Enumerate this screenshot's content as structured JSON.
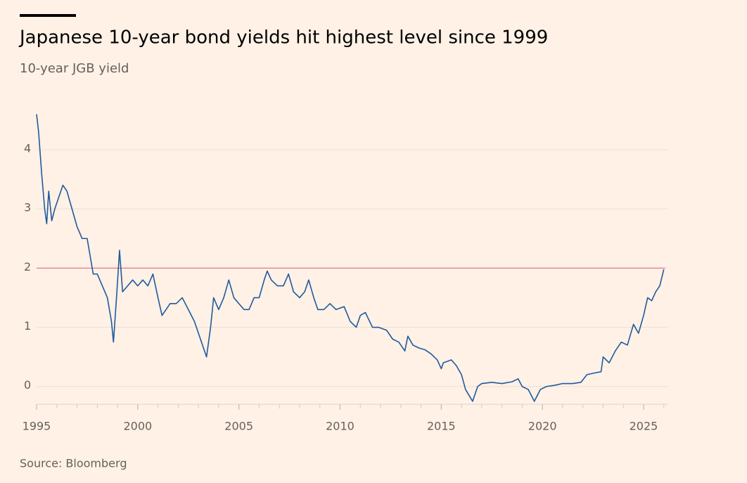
{
  "chart_data": {
    "type": "line",
    "title": "Japanese 10-year bond yields hit highest level since 1999",
    "subtitle": "10-year JGB yield",
    "source": "Source: Bloomberg",
    "color": "#1f5a9e",
    "x": [
      1995.0,
      1995.1,
      1995.25,
      1995.4,
      1995.5,
      1995.6,
      1995.75,
      1995.9,
      1996.1,
      1996.3,
      1996.5,
      1996.75,
      1997.0,
      1997.25,
      1997.5,
      1997.6,
      1997.8,
      1998.0,
      1998.25,
      1998.5,
      1998.7,
      1998.8,
      1998.95,
      1999.1,
      1999.25,
      1999.5,
      1999.75,
      2000.0,
      2000.25,
      2000.5,
      2000.75,
      2001.0,
      2001.2,
      2001.4,
      2001.6,
      2001.9,
      2002.2,
      2002.5,
      2002.8,
      2003.1,
      2003.4,
      2003.6,
      2003.75,
      2004.0,
      2004.25,
      2004.5,
      2004.75,
      2005.0,
      2005.25,
      2005.5,
      2005.75,
      2006.0,
      2006.25,
      2006.4,
      2006.6,
      2006.9,
      2007.2,
      2007.45,
      2007.7,
      2008.0,
      2008.25,
      2008.45,
      2008.7,
      2008.9,
      2009.2,
      2009.5,
      2009.8,
      2010.2,
      2010.5,
      2010.8,
      2011.0,
      2011.25,
      2011.6,
      2011.9,
      2012.3,
      2012.6,
      2012.9,
      2013.2,
      2013.35,
      2013.6,
      2013.9,
      2014.2,
      2014.5,
      2014.8,
      2015.0,
      2015.1,
      2015.5,
      2015.75,
      2016.0,
      2016.2,
      2016.55,
      2016.8,
      2017.0,
      2017.5,
      2018.0,
      2018.5,
      2018.8,
      2019.0,
      2019.3,
      2019.6,
      2019.9,
      2020.2,
      2020.6,
      2021.0,
      2021.5,
      2021.9,
      2022.2,
      2022.6,
      2022.9,
      2023.0,
      2023.3,
      2023.6,
      2023.9,
      2024.2,
      2024.5,
      2024.75,
      2025.0,
      2025.2,
      2025.4,
      2025.6,
      2025.8,
      2026.0
    ],
    "values": [
      4.6,
      4.3,
      3.6,
      3.0,
      2.75,
      3.3,
      2.8,
      3.0,
      3.2,
      3.4,
      3.3,
      3.0,
      2.7,
      2.5,
      2.5,
      2.3,
      1.9,
      1.9,
      1.7,
      1.5,
      1.1,
      0.75,
      1.5,
      2.3,
      1.6,
      1.7,
      1.8,
      1.7,
      1.8,
      1.7,
      1.9,
      1.5,
      1.2,
      1.3,
      1.4,
      1.4,
      1.5,
      1.3,
      1.1,
      0.8,
      0.5,
      1.0,
      1.5,
      1.3,
      1.5,
      1.8,
      1.5,
      1.4,
      1.3,
      1.3,
      1.5,
      1.5,
      1.8,
      1.95,
      1.8,
      1.7,
      1.7,
      1.9,
      1.6,
      1.5,
      1.6,
      1.8,
      1.5,
      1.3,
      1.3,
      1.4,
      1.3,
      1.35,
      1.1,
      1.0,
      1.2,
      1.25,
      1.0,
      1.0,
      0.95,
      0.8,
      0.75,
      0.6,
      0.85,
      0.7,
      0.65,
      0.62,
      0.55,
      0.45,
      0.3,
      0.4,
      0.45,
      0.35,
      0.2,
      -0.05,
      -0.25,
      0.0,
      0.05,
      0.07,
      0.05,
      0.08,
      0.13,
      0.0,
      -0.05,
      -0.25,
      -0.05,
      0.0,
      0.02,
      0.05,
      0.05,
      0.07,
      0.2,
      0.23,
      0.25,
      0.5,
      0.4,
      0.6,
      0.75,
      0.7,
      1.05,
      0.9,
      1.2,
      1.5,
      1.45,
      1.6,
      1.7,
      1.98
    ],
    "xlim": [
      1995,
      2026.2
    ],
    "ylim": [
      -0.3,
      4.7
    ],
    "xticks": [
      1995,
      2000,
      2005,
      2010,
      2015,
      2020,
      2025
    ],
    "xticks_minor": [
      1995,
      1996,
      1997,
      1998,
      1999,
      2000,
      2001,
      2002,
      2003,
      2004,
      2005,
      2006,
      2007,
      2008,
      2009,
      2010,
      2011,
      2012,
      2013,
      2014,
      2015,
      2016,
      2017,
      2018,
      2019,
      2020,
      2021,
      2022,
      2023,
      2024,
      2025,
      2026
    ],
    "yticks": [
      0,
      1,
      2,
      3,
      4
    ],
    "grid": true,
    "reference_line": 2,
    "reference_color": "#e3768a"
  }
}
